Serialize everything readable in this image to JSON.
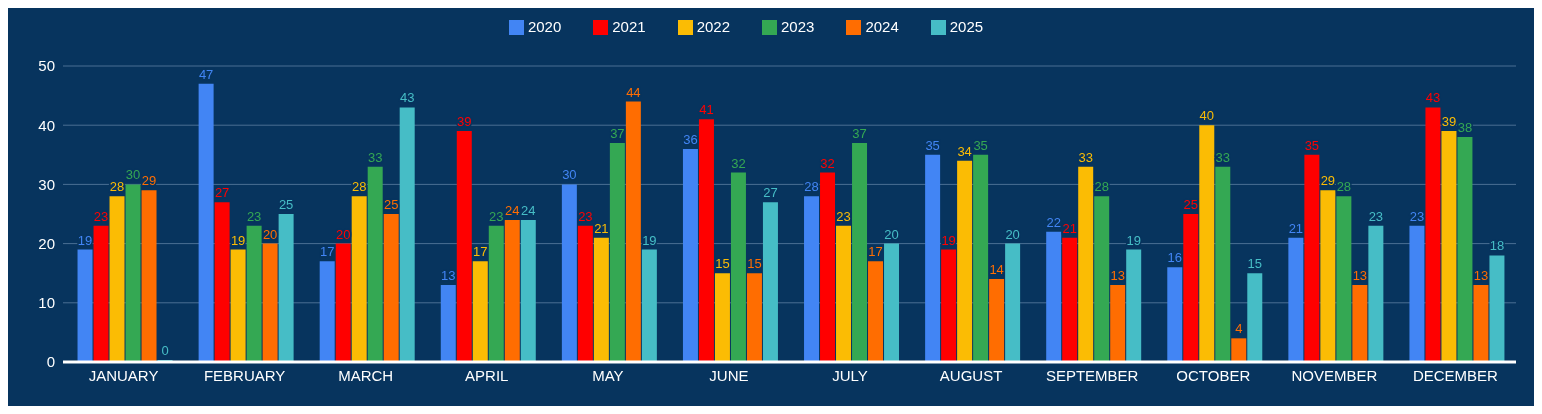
{
  "chart_data": {
    "type": "bar",
    "categories": [
      "JANUARY",
      "FEBRUARY",
      "MARCH",
      "APRIL",
      "MAY",
      "JUNE",
      "JULY",
      "AUGUST",
      "SEPTEMBER",
      "OCTOBER",
      "NOVEMBER",
      "DECEMBER"
    ],
    "series": [
      {
        "name": "2020",
        "color": "#4285f4",
        "values": [
          19,
          47,
          17,
          13,
          30,
          36,
          28,
          35,
          22,
          16,
          21,
          23
        ]
      },
      {
        "name": "2021",
        "color": "#ff0000",
        "values": [
          23,
          27,
          20,
          39,
          23,
          41,
          32,
          19,
          21,
          25,
          35,
          43
        ]
      },
      {
        "name": "2022",
        "color": "#fbbc04",
        "values": [
          28,
          19,
          28,
          17,
          21,
          15,
          23,
          34,
          33,
          40,
          29,
          39
        ]
      },
      {
        "name": "2023",
        "color": "#34a853",
        "values": [
          30,
          23,
          33,
          23,
          37,
          32,
          37,
          35,
          28,
          33,
          28,
          38
        ]
      },
      {
        "name": "2024",
        "color": "#ff6d01",
        "values": [
          29,
          20,
          25,
          24,
          44,
          15,
          17,
          14,
          13,
          4,
          13,
          13
        ]
      },
      {
        "name": "2025",
        "color": "#46bdc6",
        "values": [
          0,
          25,
          43,
          24,
          19,
          27,
          20,
          20,
          19,
          15,
          23,
          18
        ]
      }
    ],
    "ylim": [
      0,
      50
    ],
    "yticks": [
      0,
      10,
      20,
      30,
      40,
      50
    ],
    "grid": "y",
    "legend": "top",
    "data_labels": true
  }
}
